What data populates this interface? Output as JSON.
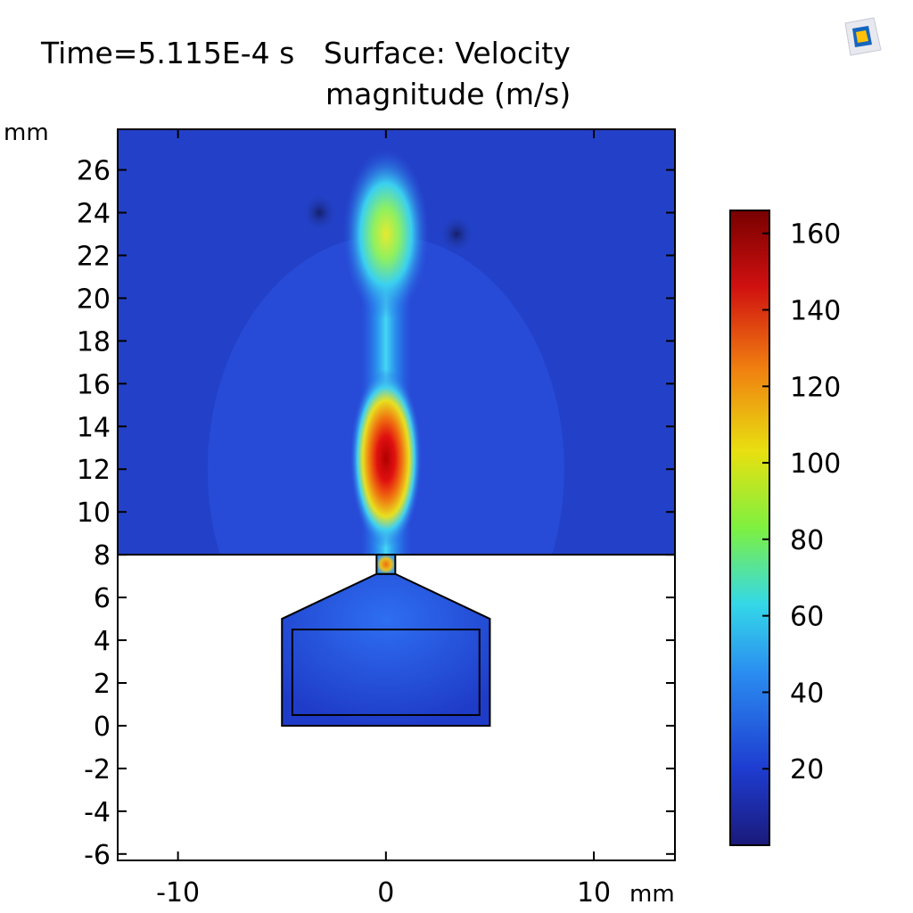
{
  "title": {
    "time": "Time=5.115E-4 s",
    "surface_line1": "Surface: Velocity",
    "surface_line2": "magnitude (m/s)"
  },
  "chart_data": {
    "type": "heatmap",
    "quantity": "Velocity magnitude",
    "x_unit": "mm",
    "y_unit": "mm",
    "xlim": [
      -12.9,
      13.9
    ],
    "ylim": [
      -6.3,
      27.9
    ],
    "x_ticks": [
      -10,
      0,
      10
    ],
    "y_ticks": [
      -6,
      -4,
      -2,
      0,
      2,
      4,
      6,
      8,
      10,
      12,
      14,
      16,
      18,
      20,
      22,
      24,
      26
    ],
    "colorbar": {
      "min": 0,
      "max": 166,
      "ticks": [
        20,
        40,
        60,
        80,
        100,
        120,
        140,
        160
      ],
      "colormap": [
        "#1a1a7a",
        "#1e3cd0",
        "#2a8cf0",
        "#34d8e8",
        "#7ef040",
        "#e8e010",
        "#f08010",
        "#d01010",
        "#780000"
      ]
    },
    "domains": {
      "open_region": {
        "x": [
          -12.9,
          13.9
        ],
        "y": [
          8,
          27.9
        ]
      },
      "nozzle_neck": {
        "x": [
          -0.45,
          0.45
        ],
        "y": [
          7.1,
          8
        ]
      },
      "chamber_outline": [
        [
          -5,
          0
        ],
        [
          5,
          0
        ],
        [
          5,
          5
        ],
        [
          0.45,
          7.1
        ],
        [
          -0.45,
          7.1
        ],
        [
          -5,
          5
        ]
      ],
      "inner_rectangle": {
        "x": [
          -4.5,
          4.5
        ],
        "y": [
          0.5,
          4.5
        ]
      }
    },
    "hotspots": [
      {
        "x": 0,
        "y": 23,
        "value": 95
      },
      {
        "x": 0,
        "y": 12.5,
        "value": 160
      },
      {
        "x": 0,
        "y": 7.5,
        "value": 130
      }
    ]
  },
  "icons": {
    "logo": "comsol-logo-icon"
  }
}
